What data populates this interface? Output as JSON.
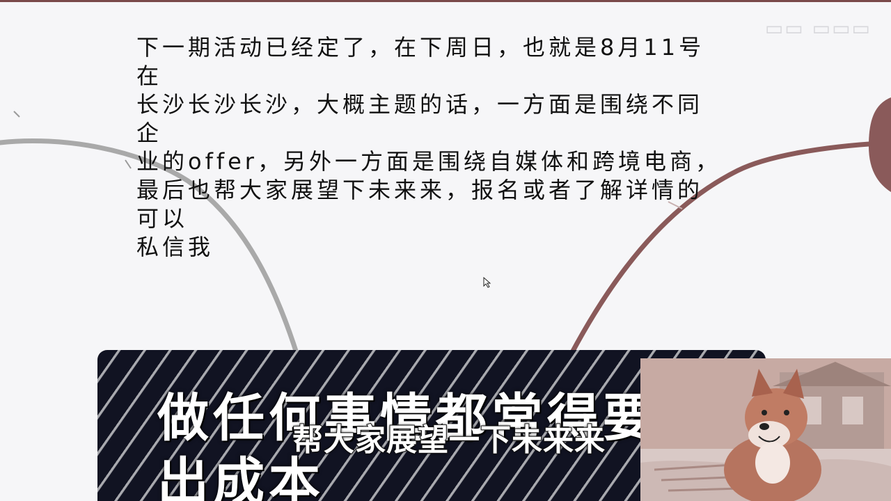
{
  "note": {
    "text": "下一期活动已经定了，在下周日，也就是8月11号在\n长沙长沙长沙，大概主题的话，一方面是围绕不同企\n业的offer，另外一方面是围绕自媒体和跨境电商，\n最后也帮大家展望下未来来，报名或者了解详情的可以\n私信我"
  },
  "title_card": {
    "text": "做任何事情都常得要\n出成本"
  },
  "subtitle": {
    "text": "帮大家展望一下未来来"
  },
  "colors": {
    "card_background": "#111322",
    "branch_gray": "#a9a9a9",
    "branch_red": "#8a5a5a"
  },
  "icons": {
    "cursor": "mouse-pointer-icon",
    "webcam": "shiba-inu-dog-image"
  }
}
